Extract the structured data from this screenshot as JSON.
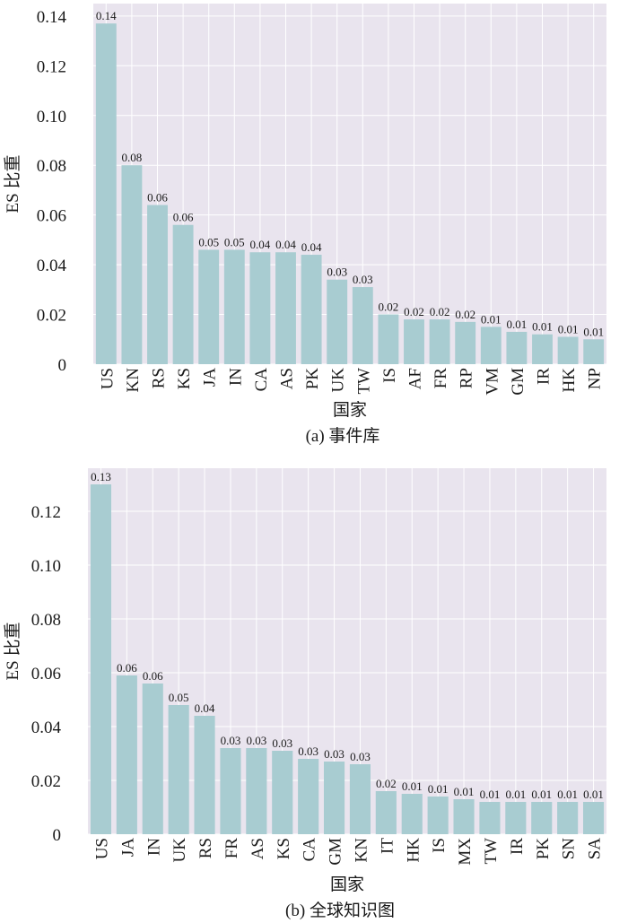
{
  "chart_data": [
    {
      "type": "bar",
      "caption": "(a) 事件库",
      "xlabel": "国家",
      "ylabel": "ES 比重",
      "ylim": [
        0,
        0.145
      ],
      "yticks": [
        0,
        0.02,
        0.04,
        0.06,
        0.08,
        0.1,
        0.12,
        0.14
      ],
      "ytick_labels": [
        "0",
        "0.02",
        "0.04",
        "0.06",
        "0.08",
        "0.10",
        "0.12",
        "0.14"
      ],
      "grid": true,
      "bar_color": "#a8ccd1",
      "categories": [
        "US",
        "KN",
        "RS",
        "KS",
        "JA",
        "IN",
        "CA",
        "AS",
        "PK",
        "UK",
        "TW",
        "IS",
        "AF",
        "FR",
        "RP",
        "VM",
        "GM",
        "IR",
        "HK",
        "NP"
      ],
      "values": [
        0.137,
        0.08,
        0.064,
        0.056,
        0.046,
        0.046,
        0.045,
        0.045,
        0.044,
        0.034,
        0.031,
        0.02,
        0.018,
        0.018,
        0.017,
        0.015,
        0.013,
        0.012,
        0.011,
        0.01
      ],
      "data_labels": [
        "0.14",
        "0.08",
        "0.06",
        "0.06",
        "0.05",
        "0.05",
        "0.04",
        "0.04",
        "0.04",
        "0.03",
        "0.03",
        "0.02",
        "0.02",
        "0.02",
        "0.02",
        "0.01",
        "0.01",
        "0.01",
        "0.01",
        "0.01"
      ]
    },
    {
      "type": "bar",
      "caption": "(b) 全球知识图",
      "xlabel": "国家",
      "ylabel": "ES 比重",
      "ylim": [
        0,
        0.136
      ],
      "yticks": [
        0,
        0.02,
        0.04,
        0.06,
        0.08,
        0.1,
        0.12
      ],
      "ytick_labels": [
        "0",
        "0.02",
        "0.04",
        "0.06",
        "0.08",
        "0.10",
        "0.12"
      ],
      "grid": true,
      "bar_color": "#a8ccd1",
      "categories": [
        "US",
        "JA",
        "IN",
        "UK",
        "RS",
        "FR",
        "AS",
        "KS",
        "CA",
        "GM",
        "KN",
        "IT",
        "HK",
        "IS",
        "MX",
        "TW",
        "IR",
        "PK",
        "SN",
        "SA"
      ],
      "values": [
        0.13,
        0.059,
        0.056,
        0.048,
        0.044,
        0.032,
        0.032,
        0.031,
        0.028,
        0.027,
        0.026,
        0.016,
        0.015,
        0.014,
        0.013,
        0.012,
        0.012,
        0.012,
        0.012,
        0.012
      ],
      "data_labels": [
        "0.13",
        "0.06",
        "0.06",
        "0.05",
        "0.04",
        "0.03",
        "0.03",
        "0.03",
        "0.03",
        "0.03",
        "0.03",
        "0.02",
        "0.01",
        "0.01",
        "0.01",
        "0.01",
        "0.01",
        "0.01",
        "0.01",
        "0.01"
      ]
    }
  ]
}
